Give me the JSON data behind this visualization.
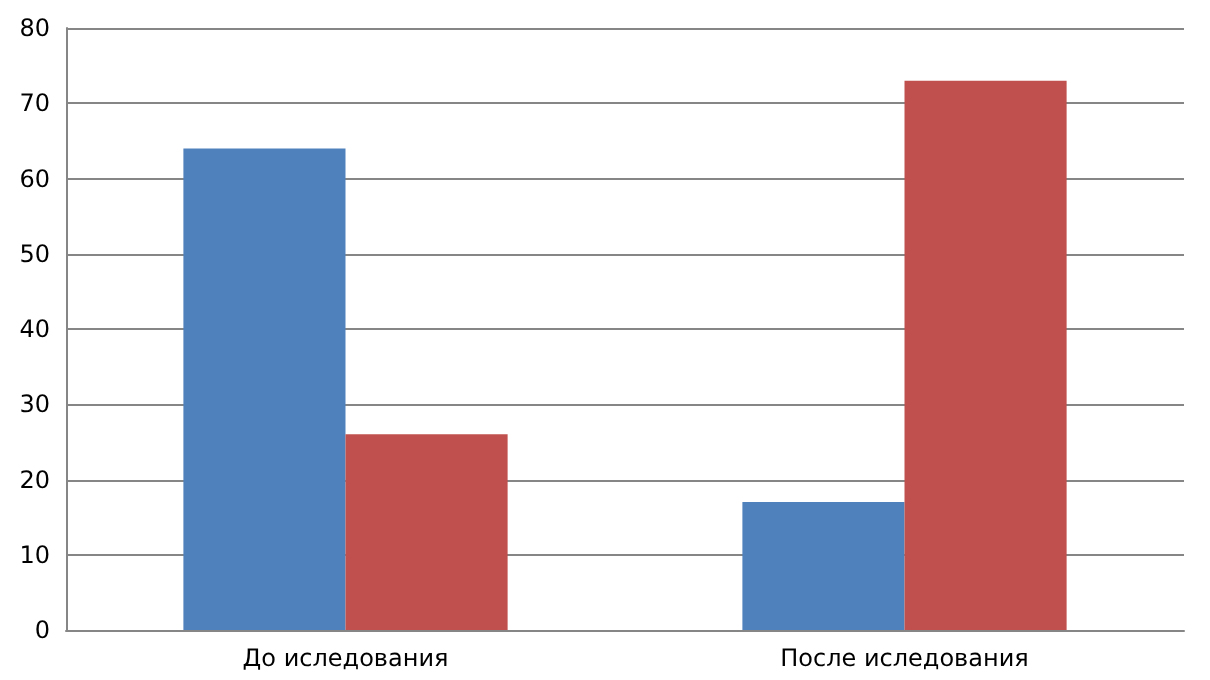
{
  "chart_data": {
    "type": "bar",
    "categories": [
      "До иследования",
      "После иследования"
    ],
    "series": [
      {
        "color": "#4f81bd",
        "values": [
          64,
          17
        ]
      },
      {
        "color": "#c0504d",
        "values": [
          26,
          73
        ]
      }
    ],
    "ylim": [
      0,
      80
    ],
    "yticks": [
      0,
      10,
      20,
      30,
      40,
      50,
      60,
      70,
      80
    ],
    "grid": "y"
  }
}
